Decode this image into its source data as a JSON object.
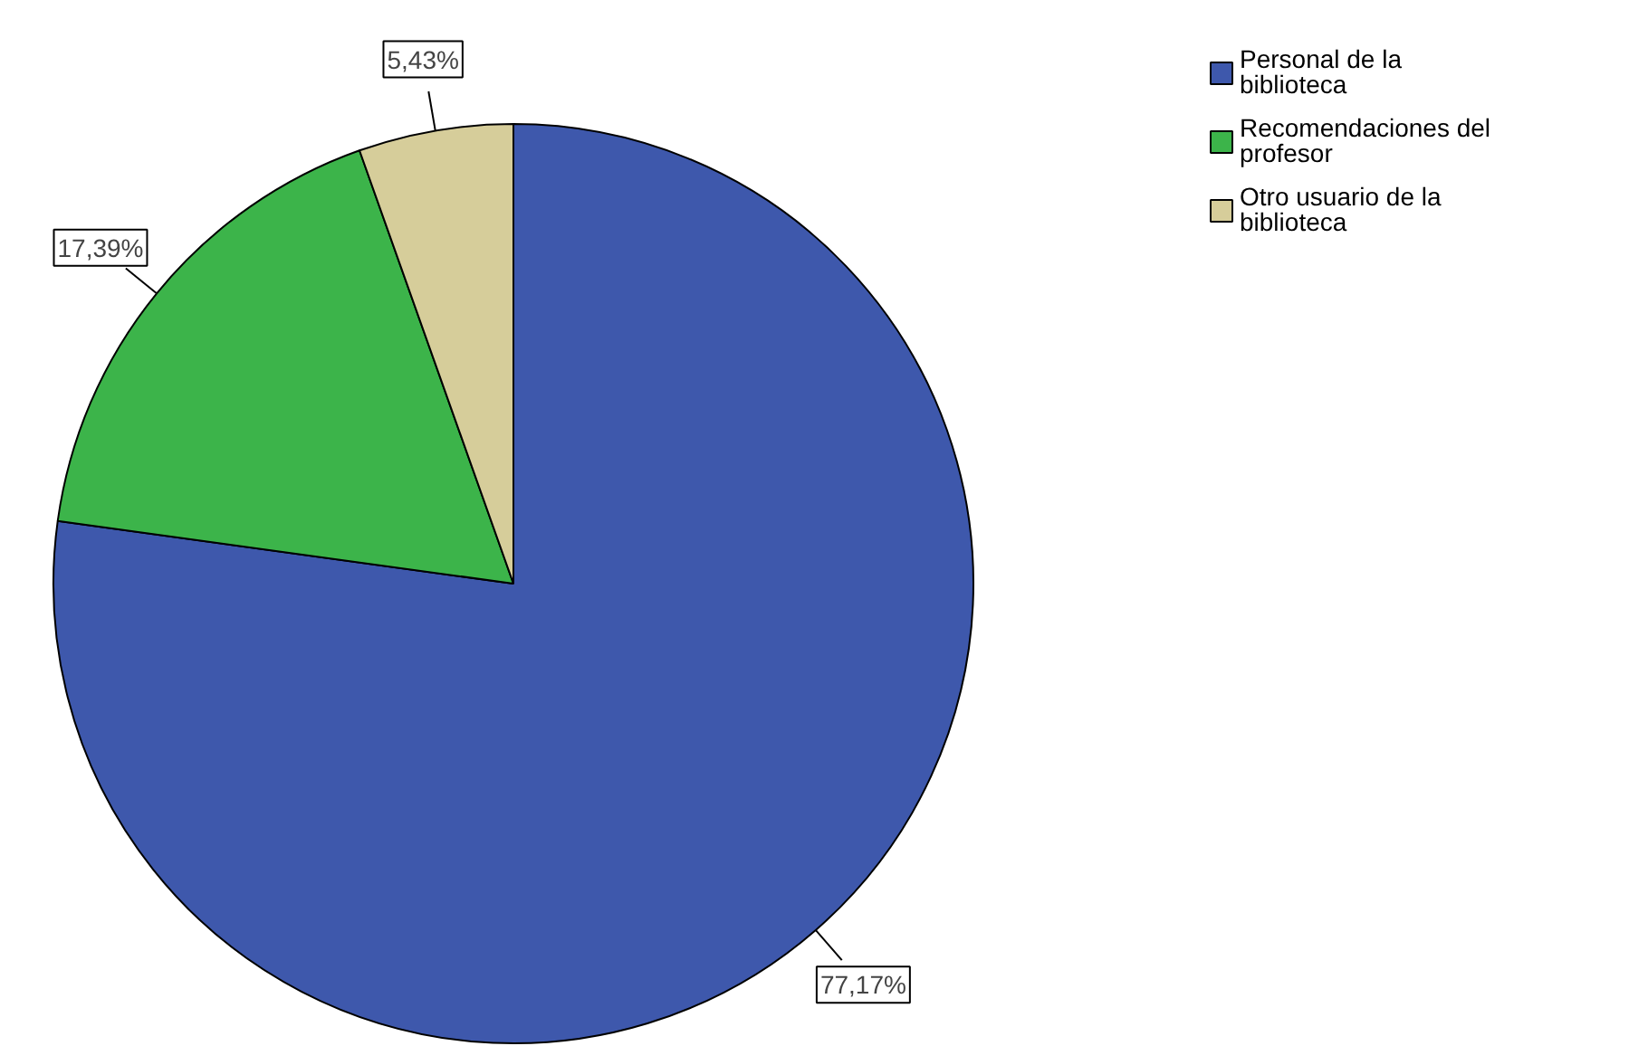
{
  "chart_data": {
    "type": "pie",
    "categories": [
      "Personal de la biblioteca",
      "Recomendaciones del profesor",
      "Otro usuario de la biblioteca"
    ],
    "values": [
      77.17,
      17.39,
      5.43
    ],
    "colors": [
      "#3e58ac",
      "#3cb44a",
      "#d6cd9a"
    ],
    "value_labels": [
      "77,17%",
      "17,39%",
      "5,43%"
    ],
    "legend": "top right"
  }
}
